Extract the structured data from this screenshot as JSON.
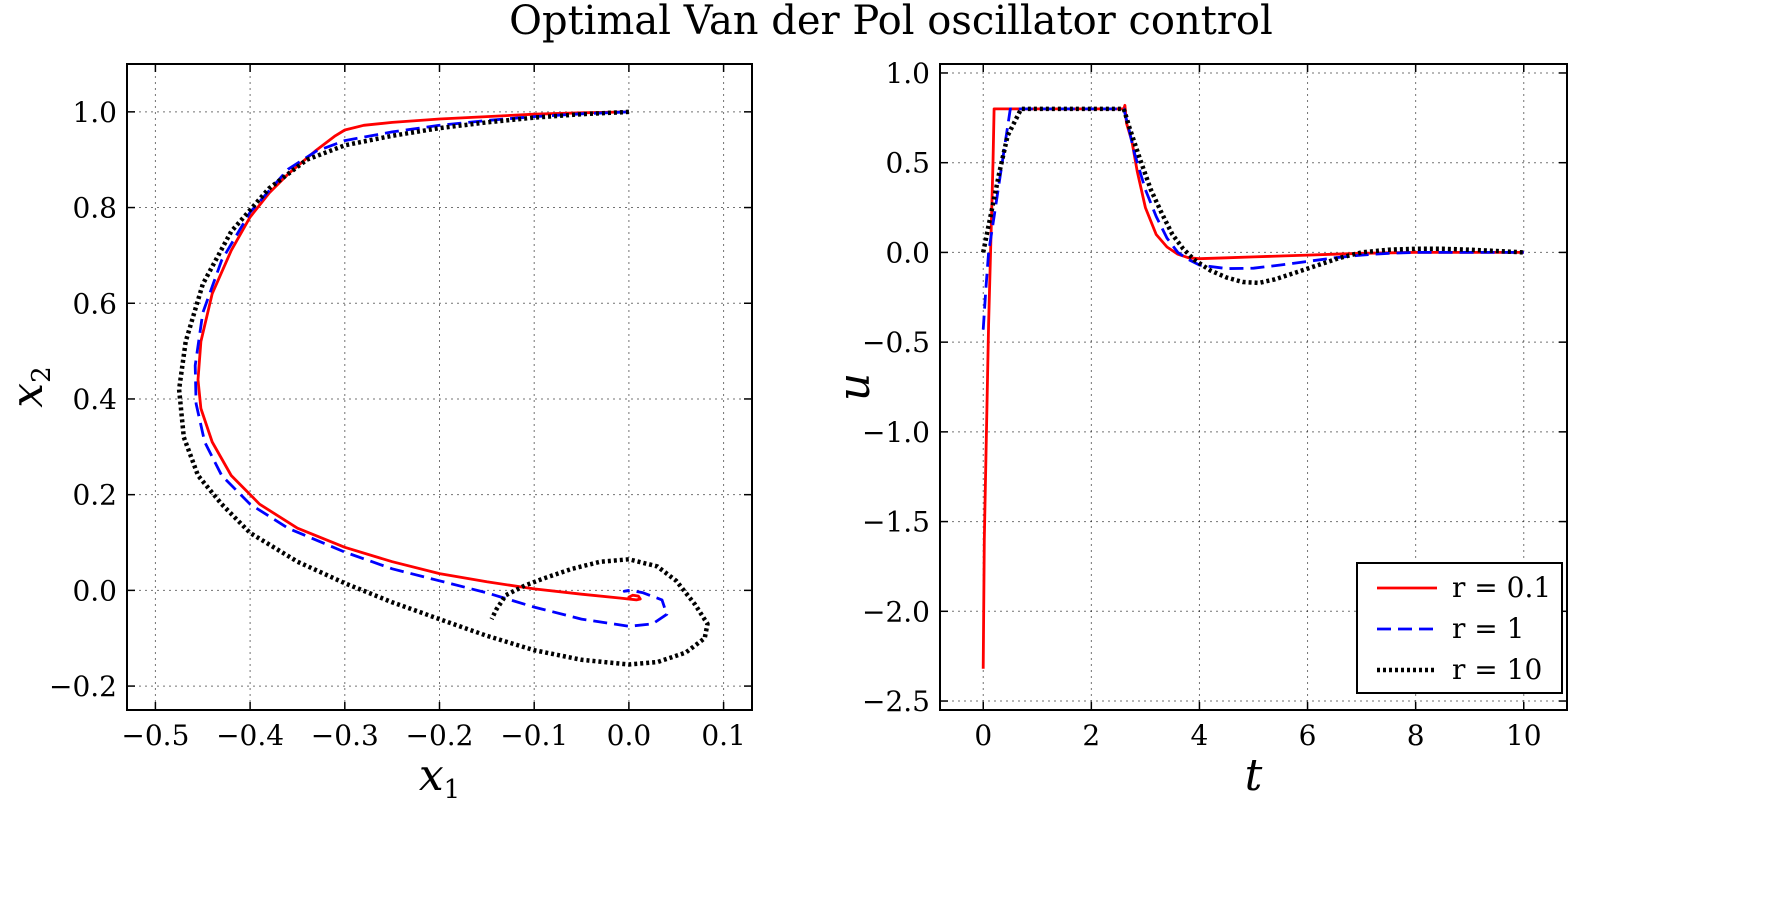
{
  "title": "Optimal Van der Pol oscillator control",
  "colors": {
    "r01": "#ff0000",
    "r1": "#0000ff",
    "r10": "#000000"
  },
  "chart_data": [
    {
      "type": "line",
      "name": "phase-portrait",
      "xlabel_main": "x",
      "xlabel_sub": "1",
      "ylabel_main": "x",
      "ylabel_sub": "2",
      "xlim": [
        -0.53,
        0.13
      ],
      "ylim": [
        -0.25,
        1.1
      ],
      "xticks": [
        -0.5,
        -0.4,
        -0.3,
        -0.2,
        -0.1,
        0.0,
        0.1
      ],
      "xtick_labels": [
        "−0.5",
        "−0.4",
        "−0.3",
        "−0.2",
        "−0.1",
        "0.0",
        "0.1"
      ],
      "yticks": [
        -0.2,
        0.0,
        0.2,
        0.4,
        0.6,
        0.8,
        1.0
      ],
      "ytick_labels": [
        "−0.2",
        "0.0",
        "0.2",
        "0.4",
        "0.6",
        "0.8",
        "1.0"
      ],
      "grid": true,
      "series": [
        {
          "name": "r = 0.1",
          "style": "solid",
          "color": "#ff0000",
          "points": [
            [
              0.0,
              1.0
            ],
            [
              -0.05,
              0.998
            ],
            [
              -0.1,
              0.995
            ],
            [
              -0.15,
              0.99
            ],
            [
              -0.2,
              0.985
            ],
            [
              -0.25,
              0.978
            ],
            [
              -0.28,
              0.972
            ],
            [
              -0.3,
              0.962
            ],
            [
              -0.31,
              0.95
            ],
            [
              -0.33,
              0.92
            ],
            [
              -0.36,
              0.87
            ],
            [
              -0.38,
              0.83
            ],
            [
              -0.4,
              0.78
            ],
            [
              -0.42,
              0.71
            ],
            [
              -0.44,
              0.62
            ],
            [
              -0.452,
              0.52
            ],
            [
              -0.455,
              0.44
            ],
            [
              -0.452,
              0.38
            ],
            [
              -0.44,
              0.31
            ],
            [
              -0.42,
              0.24
            ],
            [
              -0.39,
              0.18
            ],
            [
              -0.35,
              0.13
            ],
            [
              -0.3,
              0.09
            ],
            [
              -0.25,
              0.06
            ],
            [
              -0.2,
              0.035
            ],
            [
              -0.15,
              0.018
            ],
            [
              -0.1,
              0.003
            ],
            [
              -0.05,
              -0.008
            ],
            [
              -0.01,
              -0.016
            ],
            [
              0.008,
              -0.02
            ],
            [
              0.012,
              -0.018
            ],
            [
              0.01,
              -0.012
            ],
            [
              0.004,
              -0.01
            ],
            [
              0.0,
              -0.014
            ],
            [
              0.0,
              -0.02
            ]
          ]
        },
        {
          "name": "r = 1",
          "style": "dashed",
          "color": "#0000ff",
          "points": [
            [
              0.0,
              1.0
            ],
            [
              -0.05,
              0.996
            ],
            [
              -0.1,
              0.99
            ],
            [
              -0.15,
              0.982
            ],
            [
              -0.2,
              0.972
            ],
            [
              -0.25,
              0.958
            ],
            [
              -0.3,
              0.94
            ],
            [
              -0.33,
              0.918
            ],
            [
              -0.36,
              0.88
            ],
            [
              -0.4,
              0.79
            ],
            [
              -0.43,
              0.69
            ],
            [
              -0.45,
              0.58
            ],
            [
              -0.458,
              0.47
            ],
            [
              -0.457,
              0.39
            ],
            [
              -0.448,
              0.31
            ],
            [
              -0.43,
              0.24
            ],
            [
              -0.4,
              0.18
            ],
            [
              -0.36,
              0.13
            ],
            [
              -0.3,
              0.08
            ],
            [
              -0.25,
              0.045
            ],
            [
              -0.2,
              0.02
            ],
            [
              -0.15,
              -0.005
            ],
            [
              -0.1,
              -0.035
            ],
            [
              -0.05,
              -0.06
            ],
            [
              0.0,
              -0.075
            ],
            [
              0.025,
              -0.07
            ],
            [
              0.04,
              -0.05
            ],
            [
              0.035,
              -0.02
            ],
            [
              0.015,
              -0.005
            ],
            [
              0.002,
              0.0
            ],
            [
              -0.005,
              -0.002
            ],
            [
              0.0,
              0.0
            ]
          ]
        },
        {
          "name": "r = 10",
          "style": "dotted",
          "color": "#000000",
          "points": [
            [
              0.0,
              1.0
            ],
            [
              -0.05,
              0.995
            ],
            [
              -0.1,
              0.988
            ],
            [
              -0.15,
              0.978
            ],
            [
              -0.2,
              0.966
            ],
            [
              -0.25,
              0.95
            ],
            [
              -0.3,
              0.93
            ],
            [
              -0.34,
              0.9
            ],
            [
              -0.38,
              0.84
            ],
            [
              -0.42,
              0.75
            ],
            [
              -0.45,
              0.64
            ],
            [
              -0.468,
              0.52
            ],
            [
              -0.475,
              0.42
            ],
            [
              -0.47,
              0.32
            ],
            [
              -0.455,
              0.24
            ],
            [
              -0.43,
              0.18
            ],
            [
              -0.4,
              0.12
            ],
            [
              -0.35,
              0.06
            ],
            [
              -0.3,
              0.015
            ],
            [
              -0.25,
              -0.025
            ],
            [
              -0.2,
              -0.06
            ],
            [
              -0.15,
              -0.095
            ],
            [
              -0.1,
              -0.125
            ],
            [
              -0.05,
              -0.145
            ],
            [
              0.0,
              -0.155
            ],
            [
              0.03,
              -0.15
            ],
            [
              0.06,
              -0.13
            ],
            [
              0.08,
              -0.1
            ],
            [
              0.083,
              -0.07
            ],
            [
              0.07,
              -0.03
            ],
            [
              0.05,
              0.02
            ],
            [
              0.03,
              0.05
            ],
            [
              0.0,
              0.065
            ],
            [
              -0.03,
              0.06
            ],
            [
              -0.06,
              0.045
            ],
            [
              -0.09,
              0.025
            ],
            [
              -0.11,
              0.01
            ],
            [
              -0.13,
              -0.01
            ],
            [
              -0.14,
              -0.04
            ],
            [
              -0.145,
              -0.06
            ]
          ]
        }
      ]
    },
    {
      "type": "line",
      "name": "control-signal",
      "xlabel": "t",
      "ylabel": "u",
      "xlim": [
        -0.8,
        10.8
      ],
      "ylim": [
        -2.55,
        1.05
      ],
      "xticks": [
        0,
        2,
        4,
        6,
        8,
        10
      ],
      "xtick_labels": [
        "0",
        "2",
        "4",
        "6",
        "8",
        "10"
      ],
      "yticks": [
        -2.5,
        -2.0,
        -1.5,
        -1.0,
        -0.5,
        0.0,
        0.5,
        1.0
      ],
      "ytick_labels": [
        "−2.5",
        "−2.0",
        "−1.5",
        "−1.0",
        "−0.5",
        "0.0",
        "0.5",
        "1.0"
      ],
      "grid": true,
      "legend_position": "bottom-right",
      "series": [
        {
          "name": "r = 0.1",
          "label": "r = 0.1",
          "style": "solid",
          "color": "#ff0000",
          "points": [
            [
              0,
              -2.32
            ],
            [
              0.02,
              -1.6
            ],
            [
              0.1,
              -0.4
            ],
            [
              0.18,
              0.5
            ],
            [
              0.2,
              0.8
            ],
            [
              2.6,
              0.8
            ],
            [
              2.62,
              0.82
            ],
            [
              2.65,
              0.72
            ],
            [
              2.75,
              0.62
            ],
            [
              2.85,
              0.45
            ],
            [
              3.0,
              0.25
            ],
            [
              3.2,
              0.1
            ],
            [
              3.4,
              0.03
            ],
            [
              3.6,
              -0.01
            ],
            [
              3.8,
              -0.03
            ],
            [
              4.0,
              -0.035
            ],
            [
              4.5,
              -0.03
            ],
            [
              5.0,
              -0.025
            ],
            [
              5.5,
              -0.02
            ],
            [
              6.0,
              -0.015
            ],
            [
              6.5,
              -0.01
            ],
            [
              7.0,
              -0.005
            ],
            [
              8.0,
              0.0
            ],
            [
              9.0,
              0.0
            ],
            [
              10.0,
              0.0
            ]
          ]
        },
        {
          "name": "r = 1",
          "label": "r = 1",
          "style": "dashed",
          "color": "#0000ff",
          "points": [
            [
              0,
              -0.43
            ],
            [
              0.05,
              -0.2
            ],
            [
              0.1,
              0.0
            ],
            [
              0.2,
              0.2
            ],
            [
              0.3,
              0.4
            ],
            [
              0.4,
              0.6
            ],
            [
              0.5,
              0.8
            ],
            [
              2.6,
              0.8
            ],
            [
              2.7,
              0.68
            ],
            [
              2.8,
              0.55
            ],
            [
              3.0,
              0.35
            ],
            [
              3.2,
              0.2
            ],
            [
              3.4,
              0.08
            ],
            [
              3.6,
              0.0
            ],
            [
              3.8,
              -0.04
            ],
            [
              4.0,
              -0.07
            ],
            [
              4.5,
              -0.09
            ],
            [
              5.0,
              -0.088
            ],
            [
              5.5,
              -0.07
            ],
            [
              6.0,
              -0.05
            ],
            [
              6.5,
              -0.03
            ],
            [
              7.0,
              -0.015
            ],
            [
              7.5,
              -0.005
            ],
            [
              8.0,
              0.0
            ],
            [
              9.0,
              0.0
            ],
            [
              10.0,
              0.0
            ]
          ]
        },
        {
          "name": "r = 10",
          "label": "r = 10",
          "style": "dotted",
          "color": "#000000",
          "points": [
            [
              0,
              0.0
            ],
            [
              0.1,
              0.15
            ],
            [
              0.2,
              0.3
            ],
            [
              0.3,
              0.45
            ],
            [
              0.45,
              0.65
            ],
            [
              0.7,
              0.8
            ],
            [
              2.6,
              0.8
            ],
            [
              2.7,
              0.7
            ],
            [
              2.9,
              0.52
            ],
            [
              3.1,
              0.35
            ],
            [
              3.3,
              0.22
            ],
            [
              3.5,
              0.1
            ],
            [
              3.7,
              0.02
            ],
            [
              3.9,
              -0.04
            ],
            [
              4.2,
              -0.1
            ],
            [
              4.5,
              -0.14
            ],
            [
              4.8,
              -0.165
            ],
            [
              5.1,
              -0.17
            ],
            [
              5.4,
              -0.15
            ],
            [
              5.8,
              -0.11
            ],
            [
              6.2,
              -0.07
            ],
            [
              6.6,
              -0.03
            ],
            [
              7.0,
              0.0
            ],
            [
              7.5,
              0.015
            ],
            [
              8.0,
              0.02
            ],
            [
              8.5,
              0.02
            ],
            [
              9.0,
              0.015
            ],
            [
              9.5,
              0.008
            ],
            [
              10.0,
              0.0
            ]
          ]
        }
      ]
    }
  ]
}
